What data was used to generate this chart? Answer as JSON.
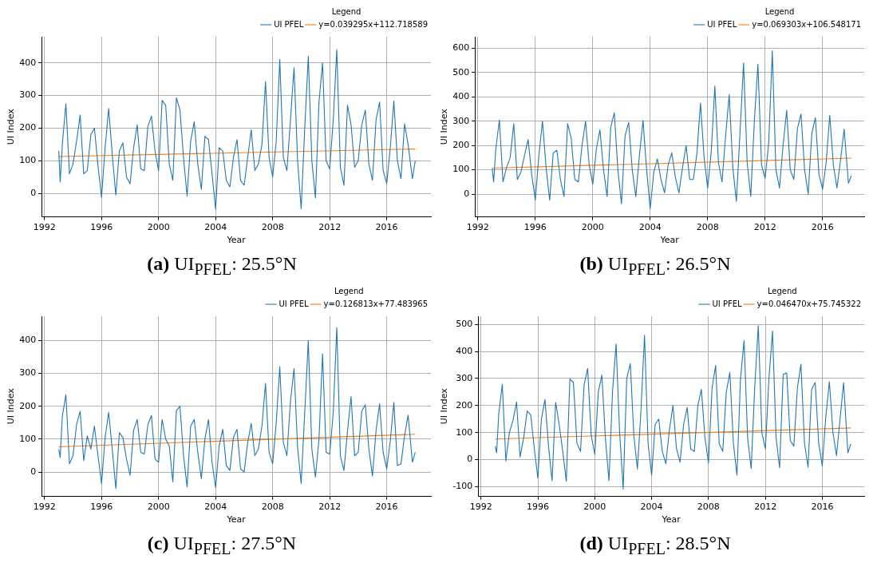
{
  "chart_data": [
    {
      "type": "line",
      "xlabel": "Year",
      "ylabel": "UI Index",
      "legend_title": "Legend",
      "legend": "top right",
      "grid": true,
      "marker": "none",
      "xlim": [
        1991.8,
        2019.1
      ],
      "xticks": [
        1992,
        1996,
        2000,
        2004,
        2008,
        2012,
        2016
      ],
      "ylim": [
        -72,
        480
      ],
      "yticks": [
        0,
        100,
        200,
        300,
        400
      ],
      "annotations": [
        "(a) UI$_{PFEL}$: 25.5°N"
      ],
      "series": [
        {
          "name": "UI PFEL",
          "color": "#1f77b4",
          "x": [
            1993,
            1993.1,
            1993.25,
            1993.5,
            1993.75,
            1994,
            1994.25,
            1994.5,
            1994.75,
            1995,
            1995.25,
            1995.5,
            1995.75,
            1996,
            1996.25,
            1996.5,
            1996.75,
            1997,
            1997.25,
            1997.5,
            1997.75,
            1998,
            1998.25,
            1998.5,
            1998.75,
            1999,
            1999.25,
            1999.5,
            1999.75,
            2000,
            2000.25,
            2000.5,
            2000.75,
            2001,
            2001.25,
            2001.5,
            2001.75,
            2002,
            2002.25,
            2002.5,
            2002.75,
            2003,
            2003.25,
            2003.5,
            2003.75,
            2004,
            2004.25,
            2004.5,
            2004.75,
            2005,
            2005.25,
            2005.5,
            2005.75,
            2006,
            2006.25,
            2006.5,
            2006.75,
            2007,
            2007.25,
            2007.5,
            2007.75,
            2008,
            2008.25,
            2008.5,
            2008.75,
            2009,
            2009.25,
            2009.5,
            2009.75,
            2010,
            2010.25,
            2010.5,
            2010.75,
            2011,
            2011.25,
            2011.5,
            2011.75,
            2012,
            2012.25,
            2012.5,
            2012.75,
            2013,
            2013.25,
            2013.5,
            2013.75,
            2014,
            2014.25,
            2014.5,
            2014.75,
            2015,
            2015.25,
            2015.5,
            2015.75,
            2016,
            2016.25,
            2016.5,
            2016.75,
            2017,
            2017.25,
            2017.5,
            2017.8,
            2018
          ],
          "values": [
            130,
            35,
            150,
            275,
            60,
            90,
            160,
            240,
            60,
            70,
            180,
            200,
            85,
            -12,
            140,
            260,
            120,
            -5,
            130,
            155,
            50,
            30,
            140,
            210,
            75,
            70,
            205,
            237,
            130,
            70,
            285,
            270,
            90,
            40,
            293,
            255,
            110,
            -8,
            160,
            220,
            90,
            12,
            175,
            165,
            60,
            -48,
            140,
            130,
            40,
            20,
            110,
            165,
            40,
            25,
            110,
            195,
            70,
            90,
            150,
            343,
            110,
            50,
            160,
            410,
            110,
            70,
            225,
            385,
            100,
            -47,
            200,
            420,
            100,
            -14,
            280,
            400,
            100,
            75,
            225,
            440,
            80,
            25,
            270,
            210,
            80,
            100,
            210,
            255,
            90,
            40,
            225,
            280,
            70,
            30,
            140,
            283,
            100,
            45,
            213,
            150,
            45,
            100
          ]
        },
        {
          "name": "y=0.039295x+112.718589",
          "color": "#ff7f0e",
          "type": "line",
          "x": [
            1993,
            2018
          ],
          "values": [
            113,
            136
          ]
        }
      ]
    },
    {
      "type": "line",
      "xlabel": "Year",
      "ylabel": "UI Index",
      "legend_title": "Legend",
      "legend": "top right",
      "grid": true,
      "marker": "none",
      "xlim": [
        1991.8,
        2018.9
      ],
      "xticks": [
        1992,
        1996,
        2000,
        2004,
        2008,
        2012,
        2016
      ],
      "ylim": [
        -94,
        648
      ],
      "yticks": [
        0,
        100,
        200,
        300,
        400,
        500,
        600
      ],
      "annotations": [
        "(b) UI$_{PFEL}$: 26.5°N"
      ],
      "series": [
        {
          "name": "UI PFEL",
          "color": "#1f77b4",
          "x": [
            1993,
            1993.1,
            1993.25,
            1993.5,
            1993.75,
            1994,
            1994.25,
            1994.5,
            1994.75,
            1995,
            1995.25,
            1995.5,
            1995.75,
            1996,
            1996.25,
            1996.5,
            1996.75,
            1997,
            1997.25,
            1997.5,
            1997.75,
            1998,
            1998.25,
            1998.5,
            1998.75,
            1999,
            1999.25,
            1999.5,
            1999.75,
            2000,
            2000.25,
            2000.5,
            2000.75,
            2001,
            2001.25,
            2001.5,
            2001.75,
            2002,
            2002.25,
            2002.5,
            2002.75,
            2003,
            2003.25,
            2003.5,
            2003.75,
            2004,
            2004.25,
            2004.5,
            2004.75,
            2005,
            2005.25,
            2005.5,
            2005.75,
            2006,
            2006.25,
            2006.5,
            2006.75,
            2007,
            2007.25,
            2007.5,
            2007.75,
            2008,
            2008.25,
            2008.5,
            2008.75,
            2009,
            2009.25,
            2009.5,
            2009.75,
            2010,
            2010.25,
            2010.5,
            2010.75,
            2011,
            2011.25,
            2011.5,
            2011.75,
            2012,
            2012.25,
            2012.5,
            2012.75,
            2013,
            2013.25,
            2013.5,
            2013.75,
            2014,
            2014.25,
            2014.5,
            2014.75,
            2015,
            2015.25,
            2015.5,
            2015.75,
            2016,
            2016.25,
            2016.5,
            2016.75,
            2017,
            2017.25,
            2017.5,
            2017.8,
            2018
          ],
          "values": [
            105,
            50,
            185,
            305,
            50,
            110,
            150,
            290,
            60,
            90,
            160,
            225,
            80,
            -25,
            160,
            300,
            110,
            -25,
            170,
            180,
            60,
            -10,
            290,
            230,
            60,
            50,
            200,
            300,
            120,
            40,
            185,
            265,
            100,
            -10,
            275,
            335,
            100,
            -40,
            240,
            295,
            100,
            -10,
            160,
            303,
            100,
            -60,
            90,
            145,
            60,
            5,
            120,
            170,
            70,
            5,
            110,
            200,
            60,
            60,
            165,
            375,
            150,
            25,
            175,
            445,
            130,
            50,
            240,
            410,
            110,
            -30,
            250,
            540,
            130,
            -10,
            300,
            535,
            120,
            65,
            210,
            590,
            100,
            25,
            200,
            345,
            100,
            60,
            270,
            330,
            100,
            0,
            250,
            315,
            80,
            20,
            130,
            325,
            120,
            25,
            140,
            268,
            45,
            75
          ]
        },
        {
          "name": "y=0.069303x+106.548171",
          "color": "#ff7f0e",
          "type": "line",
          "x": [
            1993,
            2018
          ],
          "values": [
            107,
            148
          ]
        }
      ]
    },
    {
      "type": "line",
      "xlabel": "Year",
      "ylabel": "UI Index",
      "legend_title": "Legend",
      "legend": "top right",
      "grid": true,
      "marker": "none",
      "xlim": [
        1991.8,
        2019.1
      ],
      "xticks": [
        1992,
        1996,
        2000,
        2004,
        2008,
        2012,
        2016
      ],
      "ylim": [
        -74,
        474
      ],
      "yticks": [
        0,
        100,
        200,
        300,
        400
      ],
      "annotations": [
        "(c) UI$_{PFEL}$: 27.5°N"
      ],
      "series": [
        {
          "name": "UI PFEL",
          "color": "#1f77b4",
          "x": [
            1993,
            1993.1,
            1993.25,
            1993.5,
            1993.75,
            1994,
            1994.25,
            1994.5,
            1994.75,
            1995,
            1995.25,
            1995.5,
            1995.75,
            1996,
            1996.25,
            1996.5,
            1996.75,
            1997,
            1997.25,
            1997.5,
            1997.75,
            1998,
            1998.25,
            1998.5,
            1998.75,
            1999,
            1999.25,
            1999.5,
            1999.75,
            2000,
            2000.25,
            2000.5,
            2000.75,
            2001,
            2001.25,
            2001.5,
            2001.75,
            2002,
            2002.25,
            2002.5,
            2002.75,
            2003,
            2003.25,
            2003.5,
            2003.75,
            2004,
            2004.25,
            2004.5,
            2004.75,
            2005,
            2005.25,
            2005.5,
            2005.75,
            2006,
            2006.25,
            2006.5,
            2006.75,
            2007,
            2007.25,
            2007.5,
            2007.75,
            2008,
            2008.25,
            2008.5,
            2008.75,
            2009,
            2009.25,
            2009.5,
            2009.75,
            2010,
            2010.25,
            2010.5,
            2010.75,
            2011,
            2011.25,
            2011.5,
            2011.75,
            2012,
            2012.25,
            2012.5,
            2012.75,
            2013,
            2013.25,
            2013.5,
            2013.75,
            2014,
            2014.25,
            2014.5,
            2014.75,
            2015,
            2015.25,
            2015.5,
            2015.75,
            2016,
            2016.25,
            2016.5,
            2016.75,
            2017,
            2017.25,
            2017.5,
            2017.8,
            2018
          ],
          "values": [
            70,
            45,
            170,
            235,
            25,
            50,
            145,
            185,
            35,
            110,
            70,
            140,
            50,
            -35,
            105,
            182,
            70,
            -50,
            120,
            105,
            40,
            -10,
            127,
            160,
            60,
            55,
            145,
            172,
            40,
            30,
            160,
            100,
            80,
            -30,
            187,
            200,
            50,
            -45,
            140,
            160,
            60,
            -20,
            100,
            160,
            30,
            -47,
            80,
            130,
            20,
            5,
            105,
            130,
            10,
            0,
            90,
            148,
            50,
            70,
            140,
            270,
            60,
            25,
            150,
            320,
            90,
            50,
            215,
            315,
            75,
            -35,
            180,
            400,
            70,
            -15,
            100,
            360,
            60,
            55,
            180,
            440,
            50,
            5,
            125,
            230,
            50,
            60,
            185,
            205,
            70,
            -12,
            125,
            208,
            60,
            10,
            95,
            212,
            20,
            25,
            110,
            173,
            30,
            60
          ]
        },
        {
          "name": "y=0.126813x+77.483965",
          "color": "#ff7f0e",
          "type": "line",
          "x": [
            1993,
            2018
          ],
          "values": [
            77,
            115
          ]
        }
      ]
    },
    {
      "type": "line",
      "xlabel": "Year",
      "ylabel": "UI Index",
      "legend_title": "Legend",
      "legend": "top right",
      "grid": true,
      "marker": "none",
      "xlim": [
        1991.8,
        2018.95
      ],
      "xticks": [
        1992,
        1996,
        2000,
        2004,
        2008,
        2012,
        2016
      ],
      "ylim": [
        -136,
        530
      ],
      "yticks": [
        -100,
        0,
        100,
        200,
        300,
        400,
        500
      ],
      "annotations": [
        "(d) UI$_{PFEL}$: 28.5°N"
      ],
      "series": [
        {
          "name": "UI PFEL",
          "color": "#1f77b4",
          "x": [
            1993,
            1993.1,
            1993.25,
            1993.5,
            1993.75,
            1994,
            1994.25,
            1994.5,
            1994.75,
            1995,
            1995.25,
            1995.5,
            1995.75,
            1996,
            1996.25,
            1996.5,
            1996.75,
            1997,
            1997.25,
            1997.5,
            1997.75,
            1998,
            1998.25,
            1998.5,
            1998.75,
            1999,
            1999.25,
            1999.5,
            1999.75,
            2000,
            2000.25,
            2000.5,
            2000.75,
            2001,
            2001.25,
            2001.5,
            2001.75,
            2002,
            2002.25,
            2002.5,
            2002.75,
            2003,
            2003.25,
            2003.5,
            2003.75,
            2004,
            2004.25,
            2004.5,
            2004.75,
            2005,
            2005.25,
            2005.5,
            2005.75,
            2006,
            2006.25,
            2006.5,
            2006.75,
            2007,
            2007.25,
            2007.5,
            2007.75,
            2008,
            2008.25,
            2008.5,
            2008.75,
            2009,
            2009.25,
            2009.5,
            2009.75,
            2010,
            2010.25,
            2010.5,
            2010.75,
            2011,
            2011.25,
            2011.5,
            2011.75,
            2012,
            2012.25,
            2012.5,
            2012.75,
            2013,
            2013.25,
            2013.5,
            2013.75,
            2014,
            2014.25,
            2014.5,
            2014.75,
            2015,
            2015.25,
            2015.5,
            2015.75,
            2016,
            2016.25,
            2016.5,
            2016.75,
            2017,
            2017.25,
            2017.5,
            2017.8,
            2018
          ],
          "values": [
            50,
            25,
            170,
            278,
            -5,
            100,
            145,
            213,
            10,
            80,
            180,
            165,
            40,
            -68,
            150,
            222,
            50,
            -78,
            212,
            130,
            30,
            -80,
            298,
            285,
            60,
            30,
            275,
            337,
            90,
            20,
            250,
            312,
            80,
            -78,
            250,
            427,
            100,
            -108,
            300,
            355,
            90,
            -35,
            180,
            460,
            60,
            -57,
            130,
            150,
            30,
            -15,
            110,
            200,
            40,
            -10,
            130,
            193,
            40,
            30,
            200,
            260,
            80,
            -12,
            265,
            348,
            60,
            30,
            250,
            322,
            60,
            -57,
            300,
            440,
            80,
            -33,
            270,
            495,
            100,
            40,
            300,
            475,
            80,
            -30,
            315,
            320,
            70,
            50,
            265,
            353,
            60,
            -28,
            260,
            285,
            60,
            -23,
            160,
            288,
            100,
            15,
            150,
            285,
            25,
            58
          ]
        },
        {
          "name": "y=0.046470x+75.745322",
          "color": "#ff7f0e",
          "type": "line",
          "x": [
            1993,
            2018
          ],
          "values": [
            76,
            117
          ]
        }
      ]
    }
  ]
}
